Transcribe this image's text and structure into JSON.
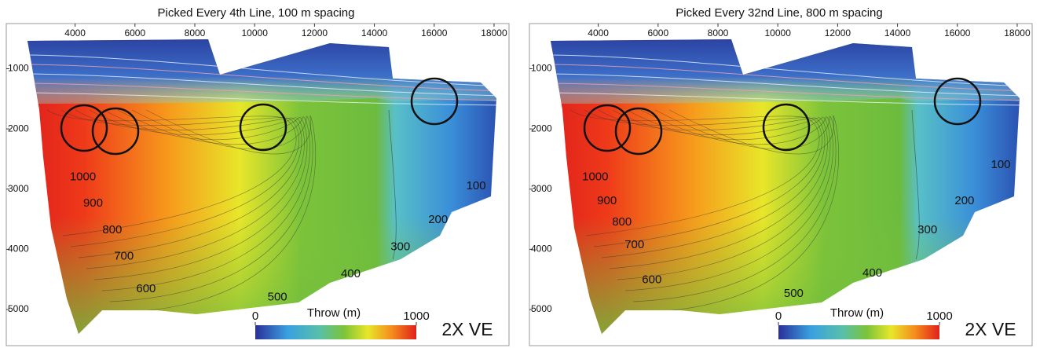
{
  "chart_data": [
    {
      "type": "contour",
      "title": "Picked Every 4th Line, 100 m spacing",
      "xlim": [
        1700,
        18500
      ],
      "ylim": [
        250,
        5600
      ],
      "y_inverted": true,
      "xticks": [
        4000,
        6000,
        8000,
        10000,
        12000,
        14000,
        16000,
        18000
      ],
      "yticks": [
        1000,
        2000,
        3000,
        4000,
        5000
      ],
      "colorbar_label": "Throw (m)",
      "clim": [
        0,
        1000
      ],
      "cticks": [
        0,
        1000
      ],
      "annotation": "2X VE",
      "contour_labels": [
        {
          "value": 1000,
          "x": 4260,
          "y": 2800
        },
        {
          "value": 900,
          "x": 4600,
          "y": 3240
        },
        {
          "value": 800,
          "x": 5240,
          "y": 3680
        },
        {
          "value": 700,
          "x": 5630,
          "y": 4120
        },
        {
          "value": 600,
          "x": 6370,
          "y": 4660
        },
        {
          "value": 500,
          "x": 10760,
          "y": 4800
        },
        {
          "value": 400,
          "x": 13210,
          "y": 4410
        },
        {
          "value": 300,
          "x": 14870,
          "y": 3960
        },
        {
          "value": 200,
          "x": 16130,
          "y": 3510
        },
        {
          "value": 100,
          "x": 17400,
          "y": 2950
        }
      ]
    },
    {
      "type": "contour",
      "title": "Picked Every 32nd Line, 800 m spacing",
      "xlim": [
        1700,
        18500
      ],
      "ylim": [
        250,
        5600
      ],
      "y_inverted": true,
      "xticks": [
        4000,
        6000,
        8000,
        10000,
        12000,
        14000,
        16000,
        18000
      ],
      "yticks": [
        1000,
        2000,
        3000,
        4000,
        5000
      ],
      "colorbar_label": "Throw (m)",
      "clim": [
        0,
        1000
      ],
      "cticks": [
        0,
        1000
      ],
      "annotation": "2X VE",
      "contour_labels": [
        {
          "value": 1000,
          "x": 3900,
          "y": 2800
        },
        {
          "value": 900,
          "x": 4290,
          "y": 3200
        },
        {
          "value": 800,
          "x": 4790,
          "y": 3550
        },
        {
          "value": 700,
          "x": 5210,
          "y": 3930
        },
        {
          "value": 600,
          "x": 5790,
          "y": 4510
        },
        {
          "value": 500,
          "x": 10530,
          "y": 4740
        },
        {
          "value": 400,
          "x": 13160,
          "y": 4400
        },
        {
          "value": 300,
          "x": 15000,
          "y": 3680
        },
        {
          "value": 200,
          "x": 16240,
          "y": 3200
        },
        {
          "value": 100,
          "x": 17450,
          "y": 2600
        }
      ]
    }
  ]
}
